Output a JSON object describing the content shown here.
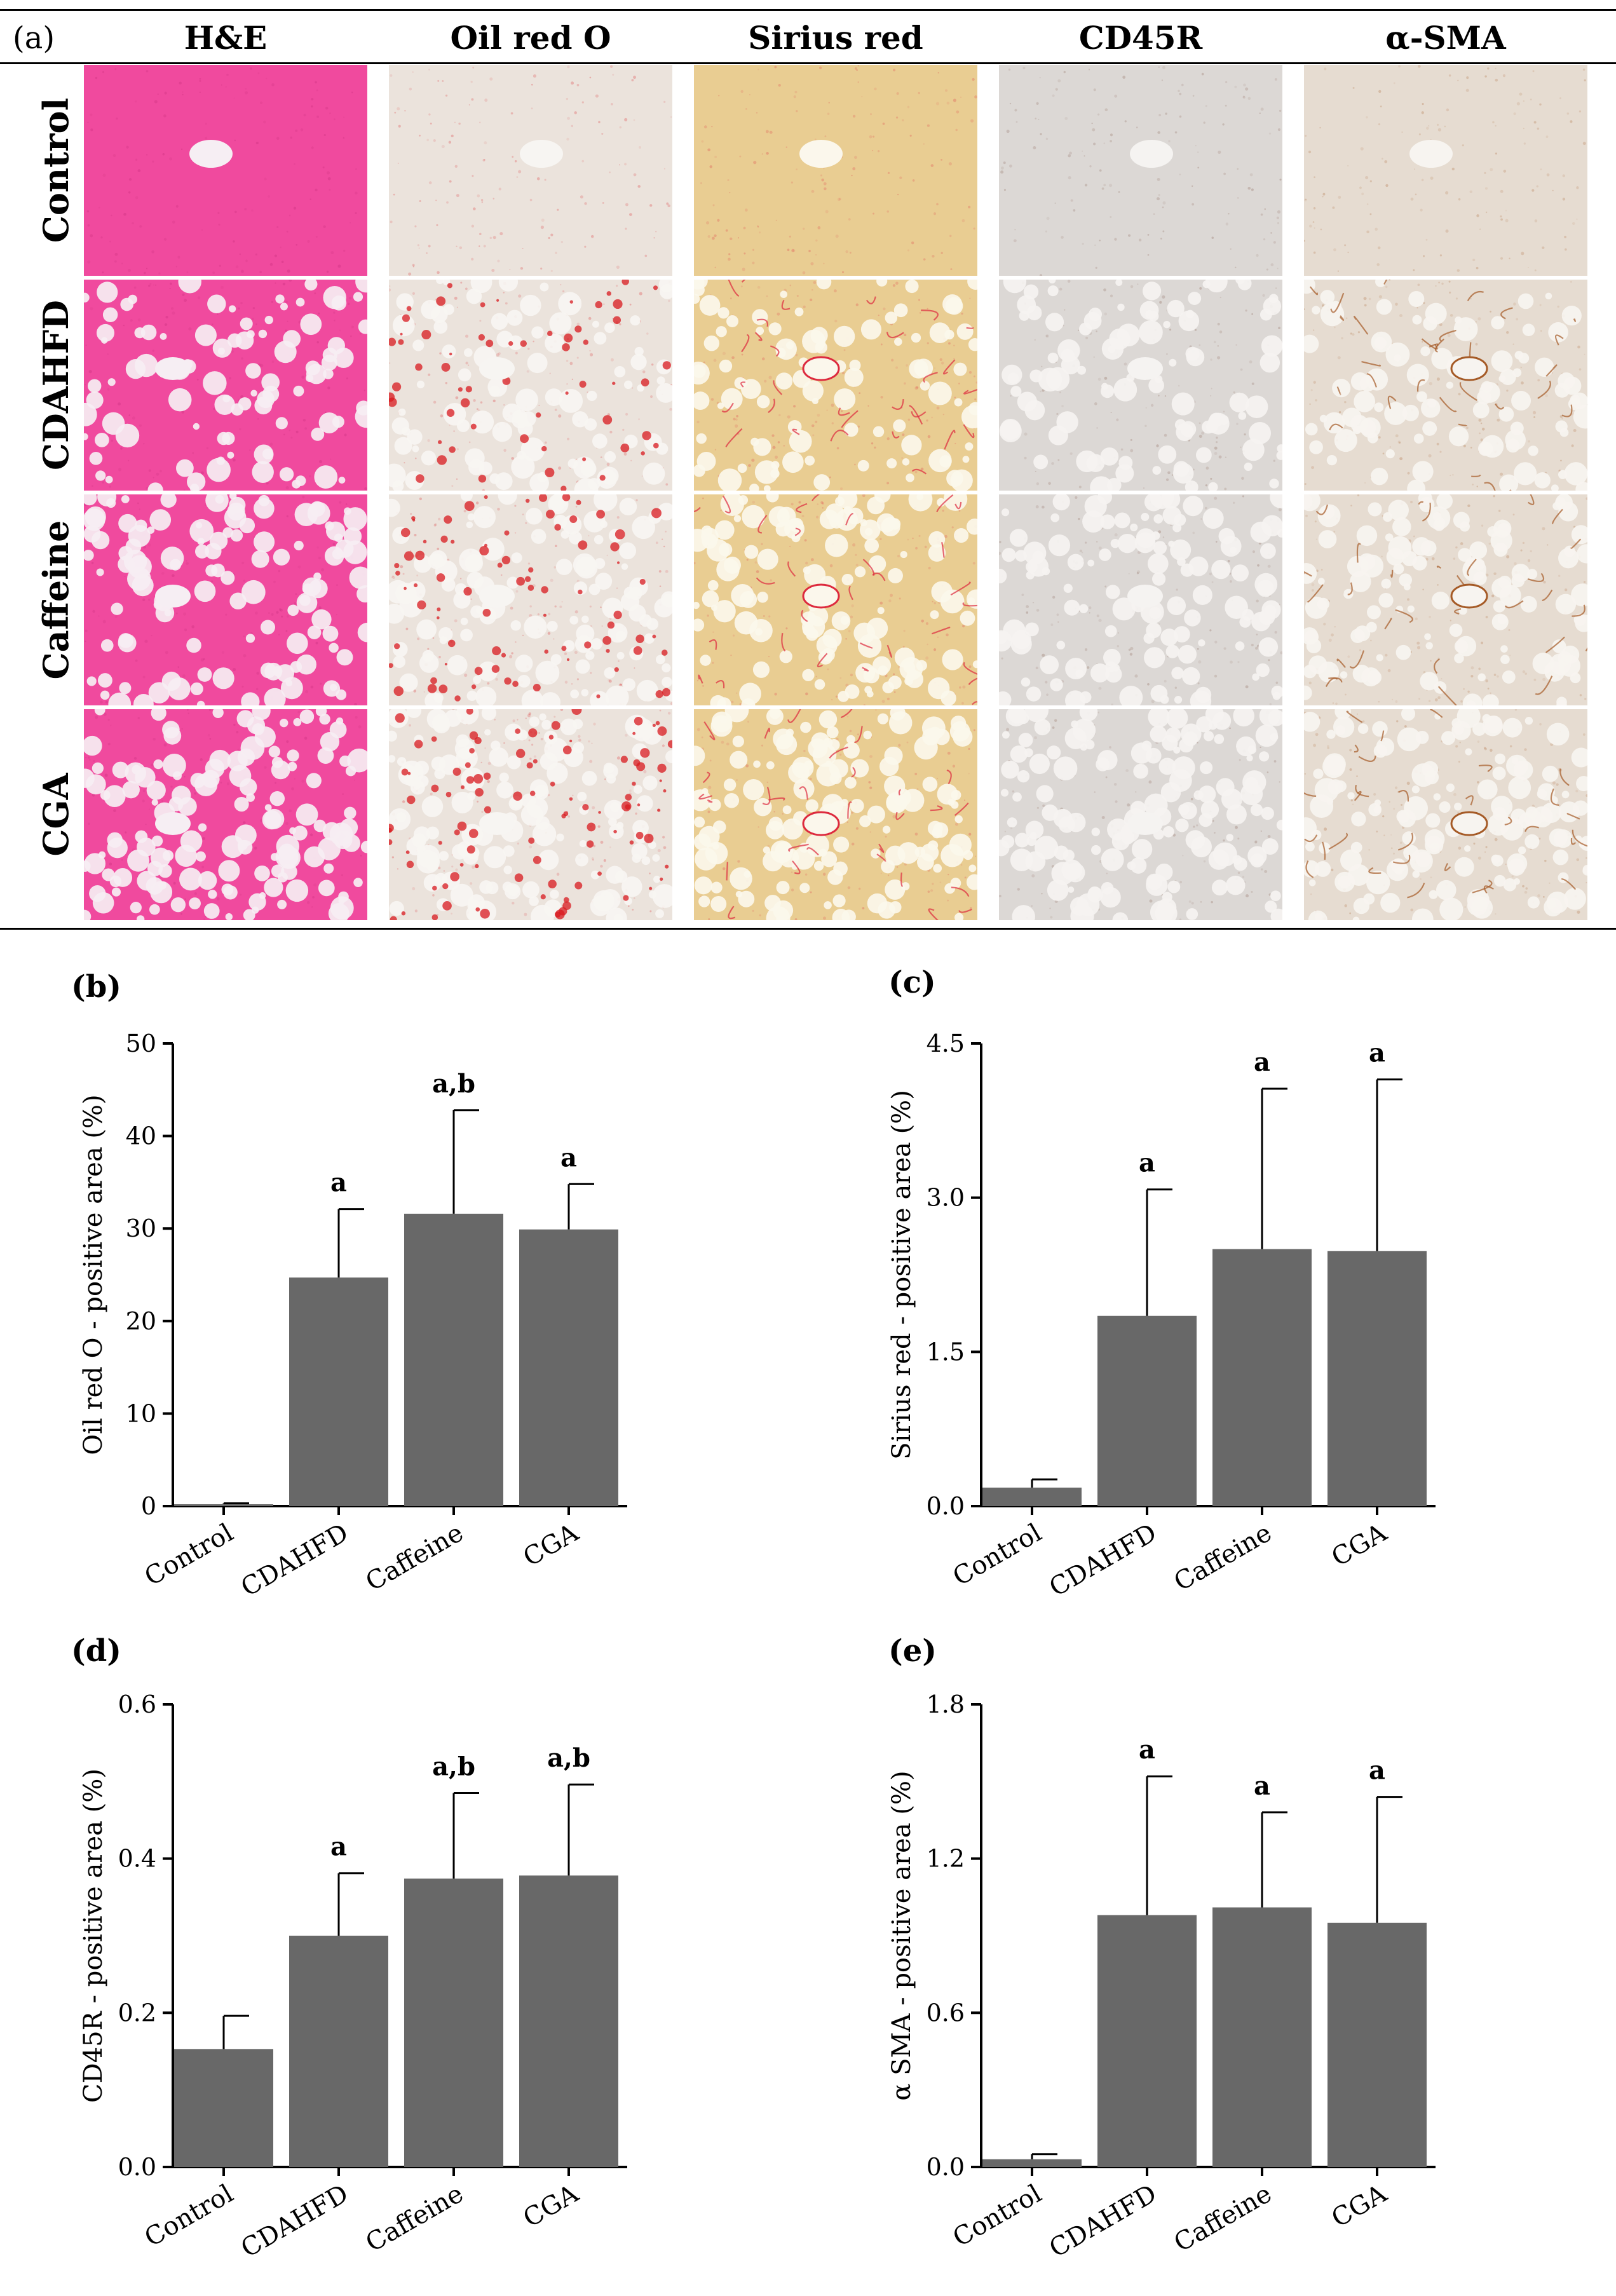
{
  "panel_a": {
    "label": "(a)",
    "columns": [
      {
        "key": "he",
        "label": "H&E",
        "palette": {
          "base": "#f04a9e",
          "dark": "#b8236f",
          "hole": "#f6eef3"
        }
      },
      {
        "key": "oro",
        "label": "Oil red O",
        "palette": {
          "base": "#ebe3dc",
          "dark": "#d81a1f",
          "hole": "#f7f5f2"
        }
      },
      {
        "key": "sr",
        "label": "Sirius red",
        "palette": {
          "base": "#e9cd92",
          "dark": "#dd2a3e",
          "hole": "#fbf7ec"
        }
      },
      {
        "key": "cd45r",
        "label": "CD45R",
        "palette": {
          "base": "#dcd8d5",
          "dark": "#7d5140",
          "hole": "#f5f3f1"
        }
      },
      {
        "key": "asma",
        "label": "α-SMA",
        "palette": {
          "base": "#e6dcd1",
          "dark": "#a55a26",
          "hole": "#f7f4f0"
        }
      }
    ],
    "rows": [
      {
        "key": "control",
        "label": "Control"
      },
      {
        "key": "cdahfd",
        "label": "CDAHFD"
      },
      {
        "key": "caffeine",
        "label": "Caffeine"
      },
      {
        "key": "cga",
        "label": "CGA"
      }
    ],
    "micrograph_icon": "tissue-micrograph"
  },
  "charts": [
    {
      "panel_label": "(b)",
      "chart_data": {
        "type": "bar",
        "categories": [
          "Control",
          "CDAHFD",
          "Caffeine",
          "CGA"
        ],
        "values": [
          0.2,
          24.7,
          31.6,
          29.9
        ],
        "errors": [
          0.1,
          7.4,
          11.2,
          4.9
        ],
        "annotations": [
          "",
          "a",
          "a,b",
          "a"
        ],
        "ylabel": "Oil red O - positive area (%)",
        "ylim": [
          0,
          50
        ],
        "yticks": [
          "0",
          "10",
          "20",
          "30",
          "40",
          "50"
        ],
        "bar_color": "#686868"
      }
    },
    {
      "panel_label": "(c)",
      "chart_data": {
        "type": "bar",
        "categories": [
          "Control",
          "CDAHFD",
          "Caffeine",
          "CGA"
        ],
        "values": [
          0.18,
          1.85,
          2.5,
          2.48
        ],
        "errors": [
          0.08,
          1.23,
          1.56,
          1.67
        ],
        "annotations": [
          "",
          "a",
          "a",
          "a"
        ],
        "ylabel": "Sirius red - positive area (%)",
        "ylim": [
          0,
          4.5
        ],
        "yticks": [
          "0.0",
          "1.5",
          "3.0",
          "4.5"
        ],
        "bar_color": "#686868"
      }
    },
    {
      "panel_label": "(d)",
      "chart_data": {
        "type": "bar",
        "categories": [
          "Control",
          "CDAHFD",
          "Caffeine",
          "CGA"
        ],
        "values": [
          0.153,
          0.3,
          0.374,
          0.378
        ],
        "errors": [
          0.043,
          0.081,
          0.111,
          0.118
        ],
        "annotations": [
          "",
          "a",
          "a,b",
          "a,b"
        ],
        "ylabel": "CD45R - positive area (%)",
        "ylim": [
          0,
          0.6
        ],
        "yticks": [
          "0.0",
          "0.2",
          "0.4",
          "0.6"
        ],
        "bar_color": "#686868"
      }
    },
    {
      "panel_label": "(e)",
      "chart_data": {
        "type": "bar",
        "categories": [
          "Control",
          "CDAHFD",
          "Caffeine",
          "CGA"
        ],
        "values": [
          0.03,
          0.98,
          1.01,
          0.95
        ],
        "errors": [
          0.02,
          0.54,
          0.37,
          0.49
        ],
        "annotations": [
          "",
          "a",
          "a",
          "a"
        ],
        "ylabel": "α SMA - positive area (%)",
        "ylim": [
          0,
          1.8
        ],
        "yticks": [
          "0.0",
          "0.6",
          "1.2",
          "1.8"
        ],
        "bar_color": "#686868"
      }
    }
  ]
}
